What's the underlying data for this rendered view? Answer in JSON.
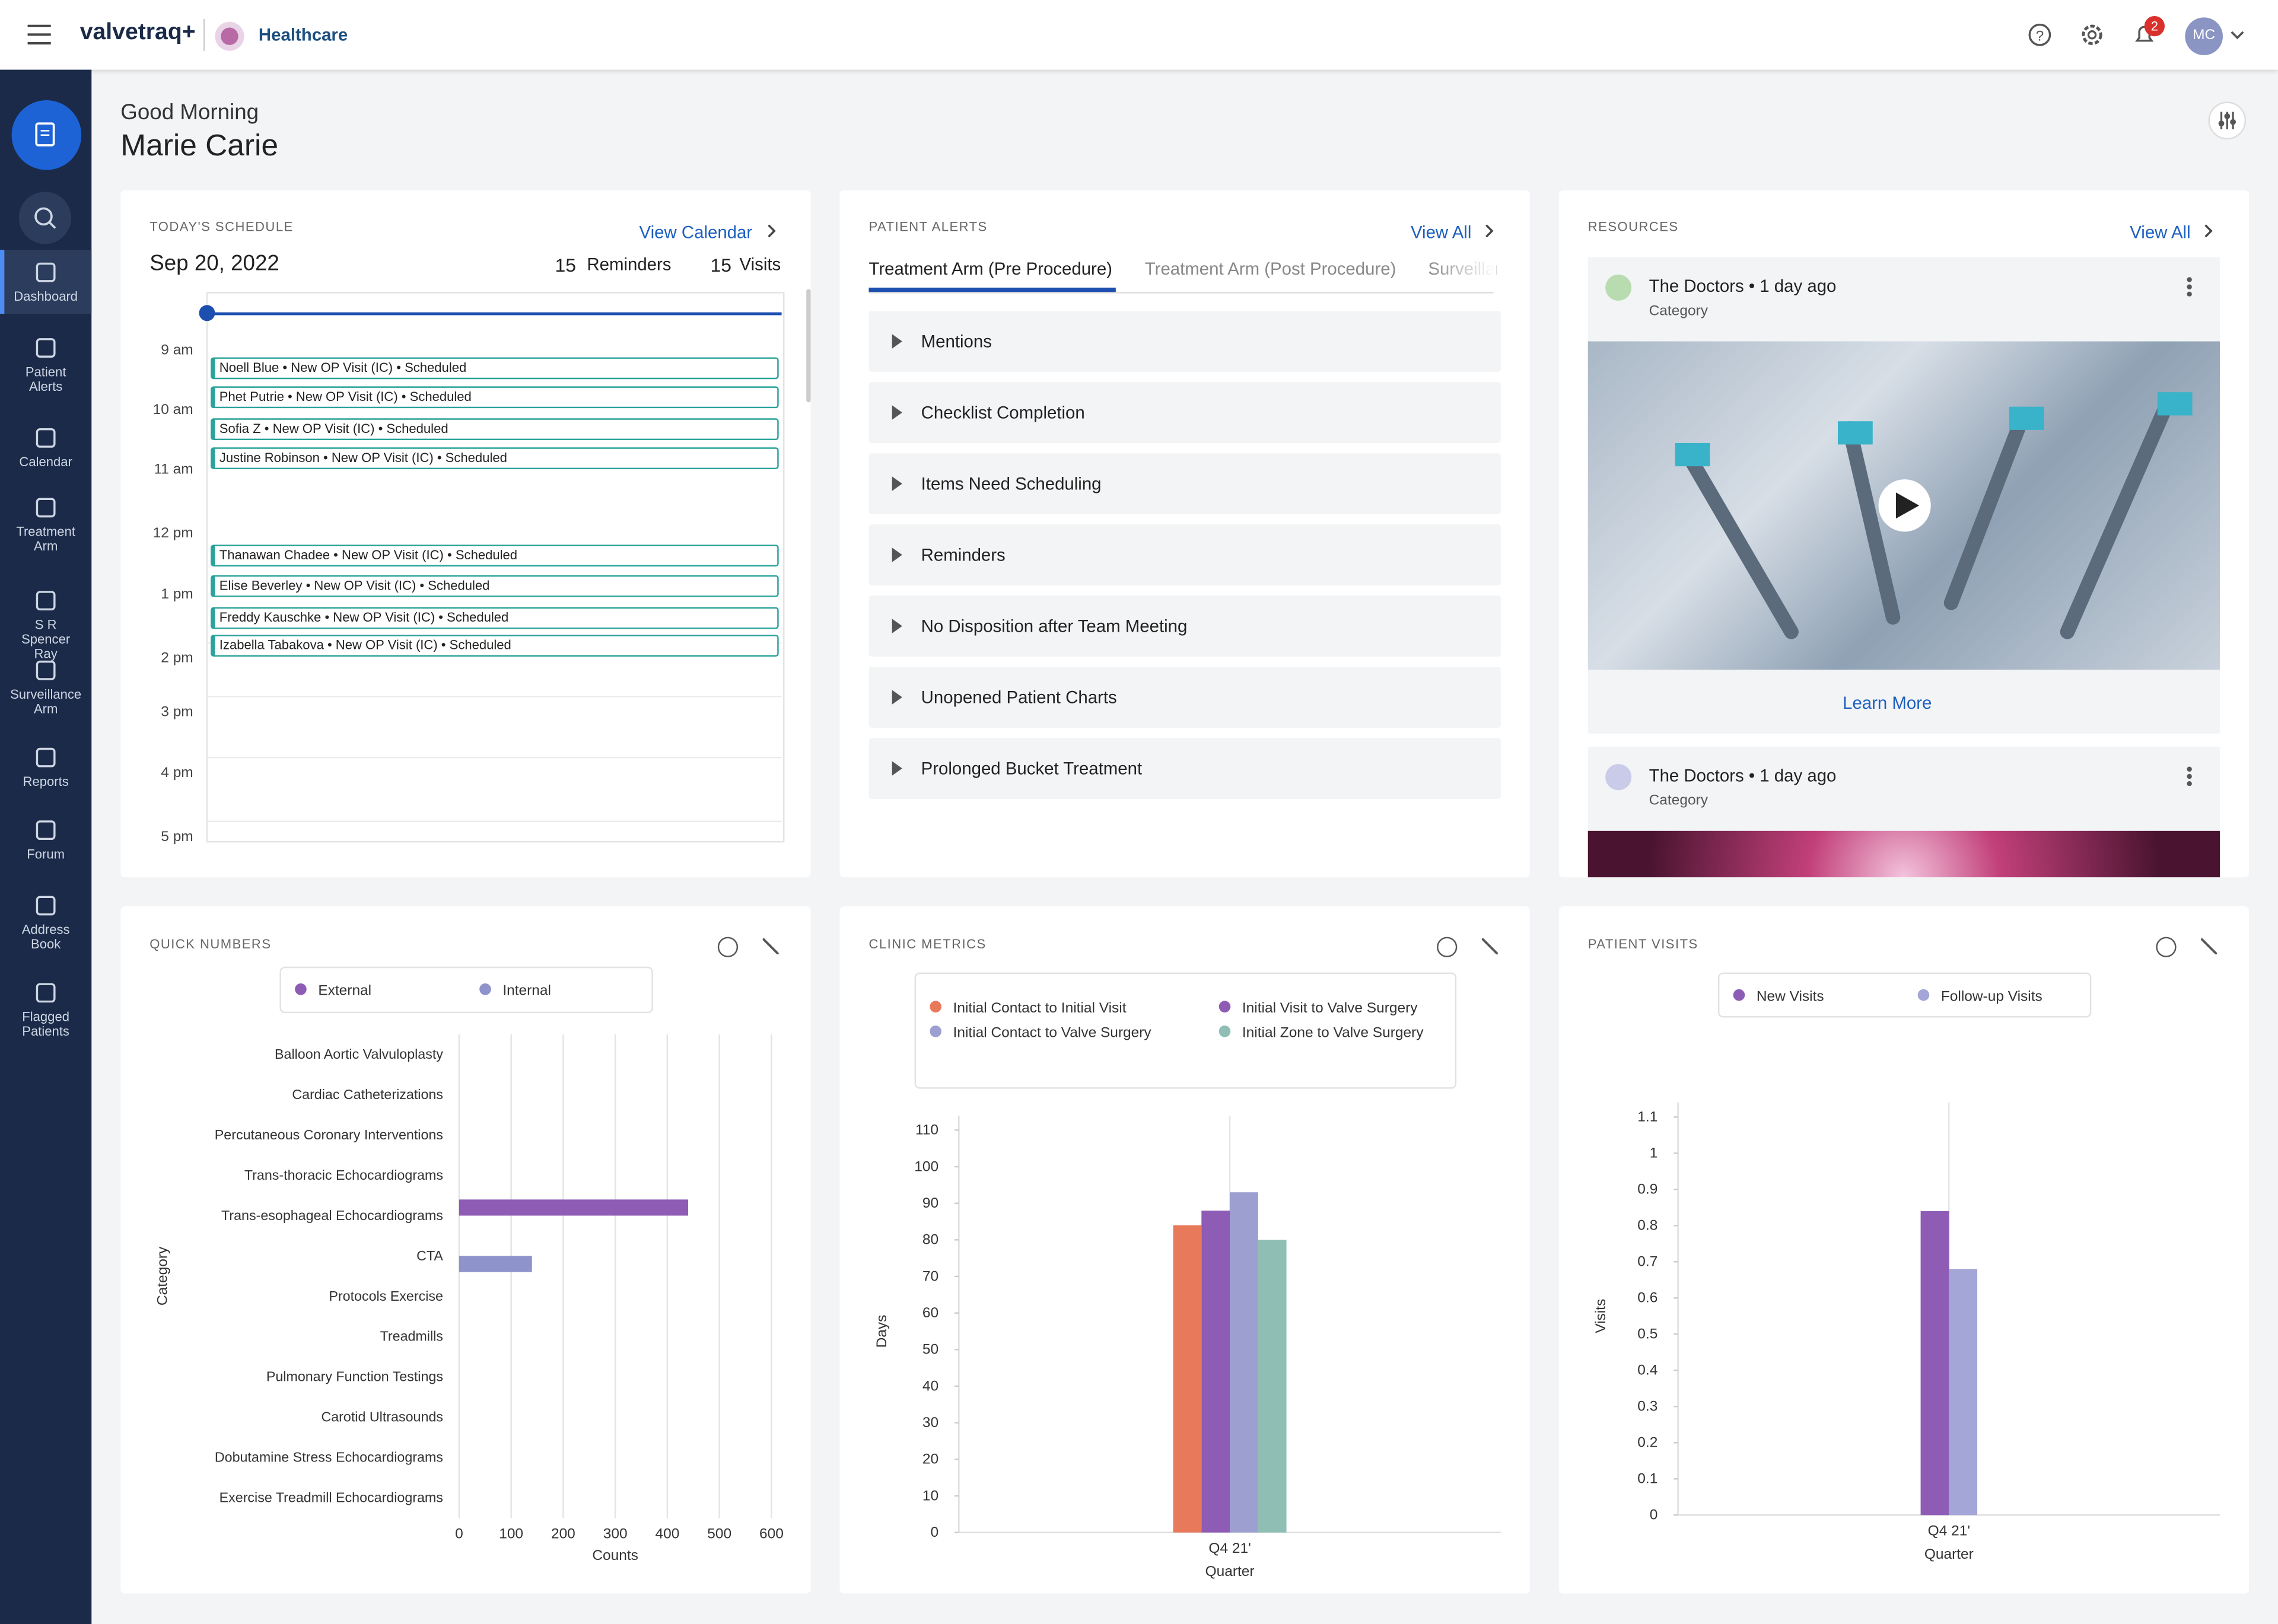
{
  "header": {
    "logo": "valvetraq+",
    "brand": "Healthcare",
    "notification_count": "2",
    "avatar": "MC"
  },
  "sidebar": [
    "Dashboard",
    "Patient Alerts",
    "Calendar",
    "Treatment Arm",
    "S R Spencer Ray",
    "Surveillance Arm",
    "Reports",
    "Forum",
    "Address Book",
    "Flagged Patients"
  ],
  "greeting": {
    "line1": "Good Morning",
    "name": "Marie Carie"
  },
  "schedule": {
    "title": "TODAY'S SCHEDULE",
    "link": "View Calendar",
    "date": "Sep 20, 2022",
    "reminders_count": "15",
    "reminders_label": "Reminders",
    "visits_count": "15",
    "visits_label": "Visits",
    "hours": [
      "9 am",
      "10 am",
      "11 am",
      "12 pm",
      "1 pm",
      "2 pm",
      "3 pm",
      "4 pm",
      "5 pm"
    ],
    "events": [
      "Noell Blue • New OP Visit (IC) • Scheduled",
      "Phet Putrie • New OP Visit (IC) • Scheduled",
      "Sofia Z • New OP Visit (IC) • Scheduled",
      "Justine Robinson • New OP Visit (IC) • Scheduled",
      "Thanawan Chadee • New OP Visit (IC) • Scheduled",
      "Elise Beverley • New OP Visit (IC) • Scheduled",
      "Freddy Kauschke • New OP Visit (IC) • Scheduled",
      "Izabella Tabakova • New OP Visit (IC) • Scheduled"
    ]
  },
  "alerts": {
    "title": "PATIENT ALERTS",
    "link": "View All",
    "tabs": [
      "Treatment Arm (Pre Procedure)",
      "Treatment Arm (Post Procedure)",
      "Surveillance Arm"
    ],
    "items": [
      "Mentions",
      "Checklist Completion",
      "Items Need Scheduling",
      "Reminders",
      "No Disposition after Team Meeting",
      "Unopened Patient Charts",
      "Prolonged Bucket Treatment"
    ]
  },
  "resources": {
    "title": "RESOURCES",
    "link": "View All",
    "items": [
      {
        "source": "The Doctors • 1 day ago",
        "category": "Category",
        "action": "Learn More"
      },
      {
        "source": "The Doctors • 1 day ago",
        "category": "Category"
      }
    ]
  },
  "chart_data": [
    {
      "type": "bar",
      "orientation": "horizontal",
      "title": "QUICK NUMBERS",
      "xlabel": "Counts",
      "ylabel": "Category",
      "categories": [
        "Balloon Aortic Valvuloplasty",
        "Cardiac Catheterizations",
        "Percutaneous Coronary Interventions",
        "Trans-thoracic Echocardiograms",
        "Trans-esophageal Echocardiograms",
        "CTA",
        "Protocols Exercise",
        "Treadmills",
        "Pulmonary Function Testings",
        "Carotid Ultrasounds",
        "Dobutamine Stress Echocardiograms",
        "Exercise Treadmill Echocardiograms"
      ],
      "series": [
        {
          "name": "External",
          "color": "#8e5bb5",
          "values": [
            0,
            0,
            0,
            0,
            440,
            0,
            0,
            0,
            0,
            0,
            0,
            0
          ]
        },
        {
          "name": "Internal",
          "color": "#8f93cc",
          "values": [
            0,
            0,
            0,
            0,
            0,
            140,
            0,
            0,
            0,
            0,
            0,
            0
          ]
        }
      ],
      "xlim": [
        0,
        600
      ],
      "xticks": [
        0,
        100,
        200,
        300,
        400,
        500,
        600
      ],
      "grid": true
    },
    {
      "type": "bar",
      "title": "CLINIC METRICS",
      "xlabel": "Quarter",
      "ylabel": "Days",
      "categories": [
        "Q4 21'"
      ],
      "series": [
        {
          "name": "Initial Contact to Initial Visit",
          "color": "#e8795a",
          "values": [
            84
          ]
        },
        {
          "name": "Initial Visit to Valve Surgery",
          "color": "#8e5bb5",
          "values": [
            88
          ]
        },
        {
          "name": "Initial Contact to Valve Surgery",
          "color": "#9c9fd0",
          "values": [
            93
          ]
        },
        {
          "name": "Initial Zone to Valve Surgery",
          "color": "#8fbfb4",
          "values": [
            80
          ]
        }
      ],
      "ylim": [
        0,
        110
      ],
      "yticks": [
        0,
        10,
        20,
        30,
        40,
        50,
        60,
        70,
        80,
        90,
        100,
        110
      ]
    },
    {
      "type": "bar",
      "title": "PATIENT VISITS",
      "xlabel": "Quarter",
      "ylabel": "Visits",
      "categories": [
        "Q4 21'"
      ],
      "series": [
        {
          "name": "New Visits",
          "color": "#8e5bb5",
          "values": [
            0.84
          ]
        },
        {
          "name": "Follow-up Visits",
          "color": "#a3a6d6",
          "values": [
            0.68
          ]
        }
      ],
      "ylim": [
        0,
        1.1
      ],
      "yticks": [
        0,
        0.1,
        0.2,
        0.3,
        0.4,
        0.5,
        0.6,
        0.7,
        0.8,
        0.9,
        1,
        1.1
      ]
    }
  ]
}
